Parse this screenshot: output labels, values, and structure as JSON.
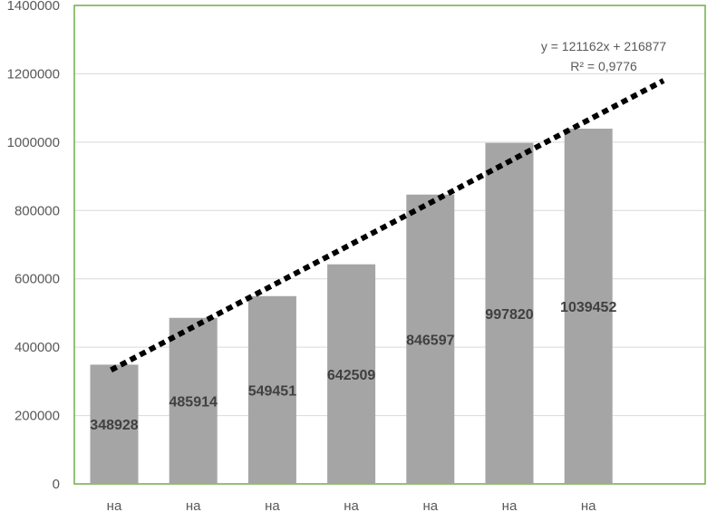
{
  "chart_data": {
    "type": "bar",
    "categories": [
      "на",
      "на",
      "на",
      "на",
      "на",
      "на",
      "на"
    ],
    "series": [
      {
        "values": [
          348928,
          485914,
          549451,
          642509,
          846597,
          997820,
          1039452
        ]
      }
    ],
    "data_labels": [
      "348928",
      "485914",
      "549451",
      "642509",
      "846597",
      "997820",
      "1039452"
    ],
    "ylim": [
      0,
      1400000
    ],
    "yticks": [
      0,
      200000,
      400000,
      600000,
      800000,
      1000000,
      1200000,
      1400000
    ],
    "ytick_labels": [
      "0",
      "200000",
      "400000",
      "600000",
      "800000",
      "1000000",
      "1200000",
      "1400000"
    ],
    "grid": true,
    "trendline": {
      "type": "linear",
      "slope": 121162,
      "intercept": 216877,
      "equation": "y = 121162x + 216877",
      "r_squared": "R² = 0,9776",
      "style": "dotted"
    },
    "colors": {
      "bar": "#a5a5a5",
      "trend": "#000000",
      "grid": "#d9d9d9",
      "frame": "#70ad47"
    }
  }
}
